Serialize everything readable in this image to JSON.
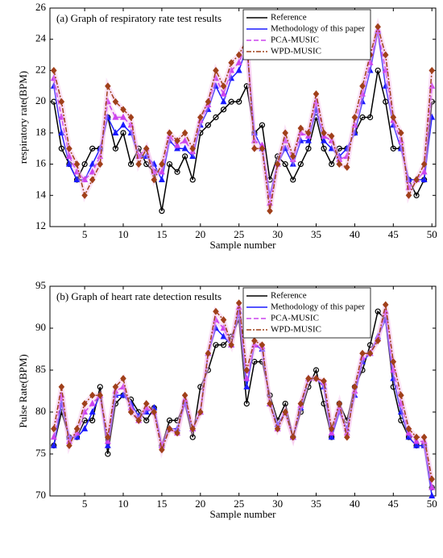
{
  "chart_data": [
    {
      "type": "line",
      "title": "(a) Graph of respiratory rate test results",
      "xlabel": "Sample number",
      "ylabel": "respiratory rate(BPM)",
      "x": [
        1,
        2,
        3,
        4,
        5,
        6,
        7,
        8,
        9,
        10,
        11,
        12,
        13,
        14,
        15,
        16,
        17,
        18,
        19,
        20,
        21,
        22,
        23,
        24,
        25,
        26,
        27,
        28,
        29,
        30,
        31,
        32,
        33,
        34,
        35,
        36,
        37,
        38,
        39,
        40,
        41,
        42,
        43,
        44,
        45,
        46,
        47,
        48,
        49,
        50
      ],
      "xlim": [
        0.5,
        50.5
      ],
      "xticks": [
        5,
        10,
        15,
        20,
        25,
        30,
        35,
        40,
        45,
        50
      ],
      "ylim": [
        12,
        26
      ],
      "yticks": [
        12,
        14,
        16,
        18,
        20,
        22,
        24,
        26
      ],
      "legend": "upper center",
      "series": [
        {
          "name": "Reference",
          "color": "#000000",
          "marker": "circle",
          "dash": "solid",
          "values": [
            20,
            17,
            16,
            15,
            16,
            17,
            17,
            19,
            17,
            18,
            16,
            17,
            16,
            15.5,
            13,
            16,
            15.5,
            16.5,
            15,
            18,
            18.5,
            19,
            19.5,
            20,
            20,
            21,
            18,
            18.5,
            15,
            16.5,
            16,
            15,
            16,
            17,
            19,
            17,
            16,
            17,
            17,
            18,
            19,
            19,
            22,
            20,
            17,
            17,
            15,
            14,
            15,
            20
          ]
        },
        {
          "name": "Methodology of this paper",
          "color": "#1a1aff",
          "marker": "triangle",
          "dash": "solid",
          "values": [
            21,
            18,
            16,
            15,
            15,
            16,
            17,
            19,
            18,
            18.5,
            18,
            16.5,
            16.5,
            16,
            15,
            17.5,
            17,
            17,
            16.5,
            18.5,
            19.5,
            21,
            20,
            21.5,
            22,
            23.5,
            18,
            17,
            14,
            16,
            17,
            16,
            17.5,
            17.5,
            19.5,
            17.5,
            17,
            16.5,
            17,
            18,
            20,
            22,
            24.5,
            21,
            18.5,
            17,
            15,
            15,
            15,
            19
          ]
        },
        {
          "name": "PCA-MUSIC",
          "color": "#cc44ee",
          "marker": "triangle",
          "dash": "dashed",
          "values": [
            21.5,
            19,
            16.5,
            15.5,
            15,
            15.5,
            16.5,
            20,
            19,
            19,
            18.5,
            16.5,
            17,
            15.5,
            15.5,
            17.8,
            17.2,
            17.5,
            16.8,
            18.8,
            19.8,
            21.5,
            20.5,
            22,
            22.5,
            23.8,
            17.5,
            17.2,
            13.5,
            16,
            17.5,
            16.3,
            18,
            17.8,
            20,
            17.8,
            17.5,
            16.3,
            16.5,
            18.5,
            20.5,
            22.5,
            24.6,
            22,
            18.8,
            17.5,
            14.5,
            15,
            15.5,
            21
          ]
        },
        {
          "name": "WPD-MUSIC",
          "color": "#a0401a",
          "marker": "diamond",
          "dash": "dashdot",
          "values": [
            22,
            20,
            17,
            16,
            14,
            15,
            16,
            21,
            20,
            19.5,
            19,
            16,
            17,
            15,
            16,
            18,
            17.5,
            18,
            17,
            19,
            20,
            22,
            21,
            22.5,
            23,
            24,
            17,
            17,
            13,
            16,
            18,
            16.5,
            18.3,
            18,
            20.5,
            18,
            17.8,
            16,
            15.8,
            19,
            21,
            23,
            24.8,
            23,
            19,
            18,
            14,
            15,
            16,
            22
          ]
        }
      ]
    },
    {
      "type": "line",
      "title": "(b) Graph of heart rate detection results",
      "xlabel": "Sample number",
      "ylabel": "Pulse Rate(BPM)",
      "x": [
        1,
        2,
        3,
        4,
        5,
        6,
        7,
        8,
        9,
        10,
        11,
        12,
        13,
        14,
        15,
        16,
        17,
        18,
        19,
        20,
        21,
        22,
        23,
        24,
        25,
        26,
        27,
        28,
        29,
        30,
        31,
        32,
        33,
        34,
        35,
        36,
        37,
        38,
        39,
        40,
        41,
        42,
        43,
        44,
        45,
        46,
        47,
        48,
        49,
        50
      ],
      "xlim": [
        0.5,
        50.5
      ],
      "xticks": [
        5,
        10,
        15,
        20,
        25,
        30,
        35,
        40,
        45,
        50
      ],
      "ylim": [
        70,
        95
      ],
      "yticks": [
        70,
        75,
        80,
        85,
        90,
        95
      ],
      "legend": "upper center",
      "series": [
        {
          "name": "Reference",
          "color": "#000000",
          "marker": "circle",
          "dash": "solid",
          "values": [
            76,
            80,
            77,
            77,
            79,
            79,
            83,
            75,
            81,
            82,
            81.5,
            80,
            79,
            80.5,
            76,
            79,
            79,
            81,
            77,
            83,
            85,
            88,
            88,
            89,
            91,
            81,
            86,
            86,
            82,
            79,
            81,
            77,
            80,
            83,
            85,
            81,
            77,
            81,
            79,
            83,
            85,
            88,
            92,
            91,
            83,
            79,
            77,
            76,
            76,
            71
          ]
        },
        {
          "name": "Methodology of this paper",
          "color": "#1a1aff",
          "marker": "triangle",
          "dash": "solid",
          "values": [
            76,
            81,
            77,
            77,
            78,
            80,
            82,
            76,
            82,
            82,
            81,
            79.5,
            80,
            80.5,
            76,
            78,
            78,
            81,
            78,
            80,
            87,
            90,
            89,
            88,
            92,
            83,
            88,
            87.5,
            81,
            78.5,
            80,
            77,
            80.5,
            84,
            84,
            83,
            77,
            80,
            78,
            82,
            86,
            87,
            89,
            91,
            84,
            80,
            77,
            76,
            76,
            70
          ]
        },
        {
          "name": "PCA-MUSIC",
          "color": "#cc44ee",
          "marker": "triangle",
          "dash": "dashed",
          "values": [
            77,
            82,
            76.5,
            77.5,
            80,
            81,
            82,
            76.5,
            82.5,
            83,
            80.5,
            79,
            80.5,
            80,
            76,
            78,
            77.5,
            81.5,
            78,
            80,
            87,
            91,
            90,
            88,
            92.5,
            84,
            88,
            87.8,
            81,
            78,
            80,
            77,
            80.8,
            84,
            84,
            83.5,
            77.5,
            80.5,
            77.5,
            82.5,
            86.5,
            87,
            88.8,
            92,
            85,
            81,
            77.5,
            76.5,
            76.5,
            71
          ]
        },
        {
          "name": "WPD-MUSIC",
          "color": "#a0401a",
          "marker": "diamond",
          "dash": "dashdot",
          "values": [
            78,
            83,
            76,
            78,
            81,
            82,
            82,
            77,
            83,
            84,
            80,
            79,
            81,
            80,
            75.5,
            78,
            77.5,
            82,
            78,
            80,
            87,
            92,
            91,
            88,
            93,
            85,
            88.5,
            88,
            81,
            78,
            80,
            77,
            81,
            84,
            84,
            83.7,
            78,
            81,
            77,
            83,
            87,
            87,
            88.5,
            92.8,
            86,
            82,
            78,
            77,
            77,
            72
          ]
        }
      ]
    }
  ]
}
